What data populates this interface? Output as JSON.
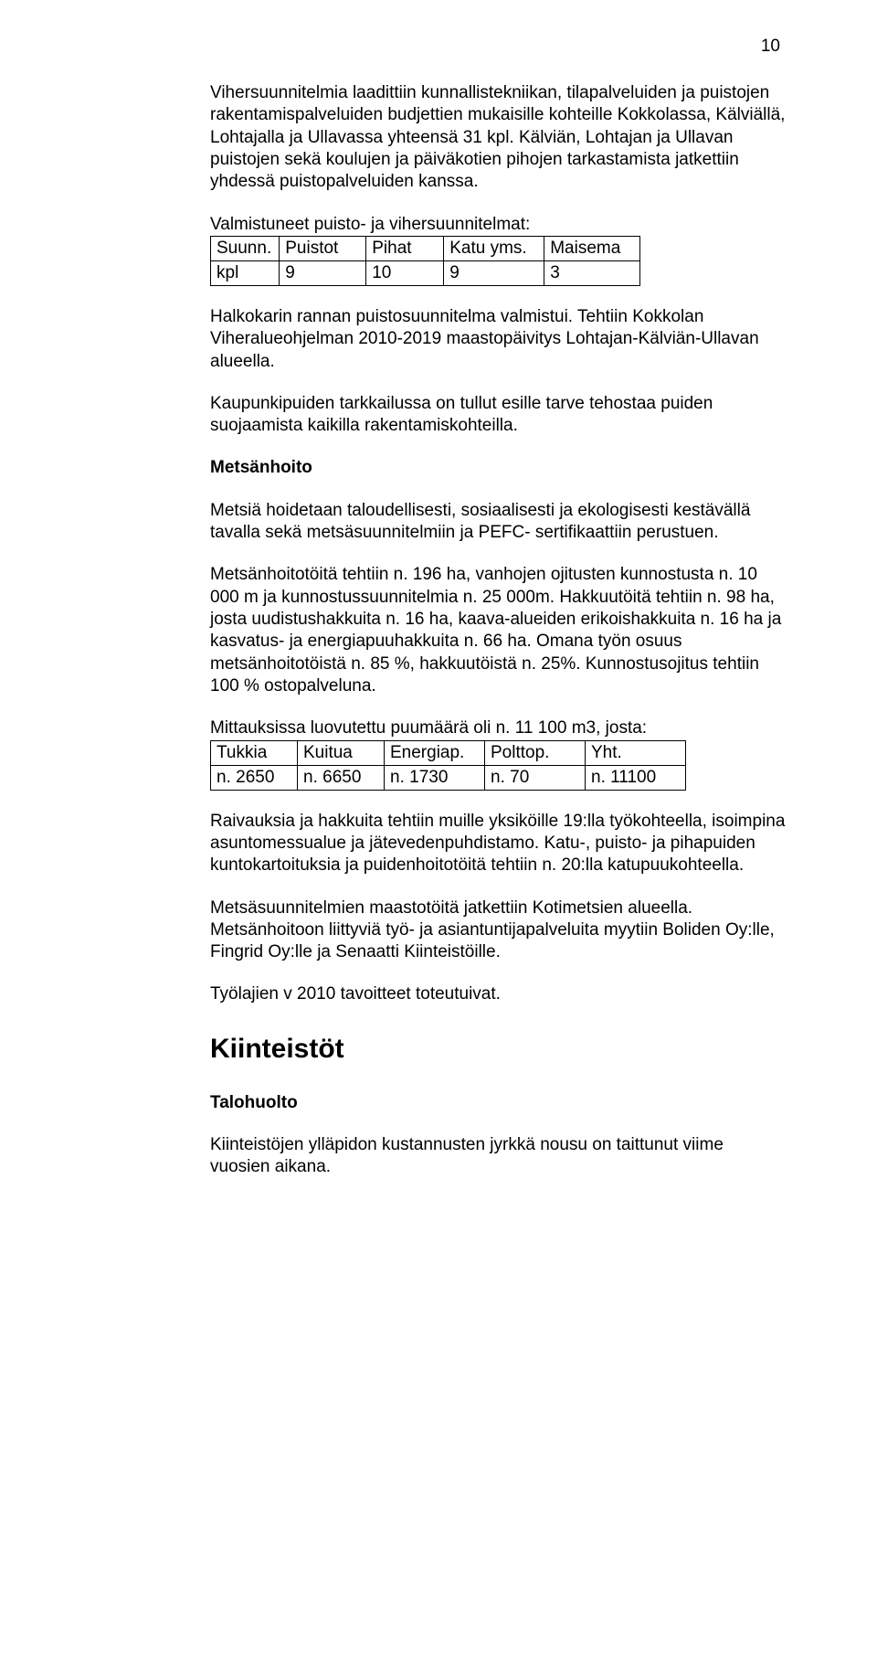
{
  "page_number": "10",
  "para_intro": "Vihersuunnitelmia laadittiin kunnallistekniikan, tilapalveluiden ja puistojen rakentamispalveluiden budjettien mukaisille kohteille Kokkolassa, Kälviällä, Lohtajalla ja Ullavassa yhteensä 31 kpl. Kälviän, Lohtajan ja Ullavan puistojen sekä koulujen ja päiväkotien pihojen tarkastamista jatkettiin yhdessä puistopalveluiden kanssa.",
  "plans_lead": "Valmistuneet puisto- ja vihersuunnitelmat:",
  "plans_table": {
    "headers": [
      "Suunn.",
      "Puistot",
      "Pihat",
      "Katu yms.",
      "Maisema"
    ],
    "row_label": "kpl",
    "row": [
      "9",
      "10",
      "9",
      "3"
    ]
  },
  "para_halkokari": "Halkokarin rannan puistosuunnitelma valmistui.\nTehtiin Kokkolan Viheralueohjelman 2010-2019 maastopäivitys Lohtajan-Kälviän-Ullavan alueella.",
  "para_kaupunkipuut": "Kaupunkipuiden tarkkailussa on tullut esille tarve tehostaa puiden suojaamista kaikilla rakentamiskohteilla.",
  "heading_metsanhoito": "Metsänhoito",
  "para_metsia": "Metsiä hoidetaan taloudellisesti, sosiaalisesti ja ekologisesti kestävällä tavalla sekä metsäsuunnitelmiin ja PEFC- sertifikaattiin perustuen.",
  "para_metsanhoitotoita": "Metsänhoitotöitä tehtiin n. 196 ha, vanhojen ojitusten kunnostusta n. 10 000 m ja kunnostussuunnitelmia n. 25 000m. Hakkuutöitä tehtiin n. 98 ha, josta uudistushakkuita n. 16 ha, kaava-alueiden erikoishakkuita n. 16 ha ja kasvatus- ja energiapuuhakkuita n. 66 ha.\nOmana työn osuus metsänhoitotöistä n. 85 %, hakkuutöistä n. 25%. Kunnostusojitus tehtiin 100 % ostopalveluna.",
  "timber_lead": "Mittauksissa luovutettu puumäärä oli n. 11 100 m3, josta:",
  "timber_table": {
    "headers": [
      "Tukkia",
      "Kuitua",
      "Energiap.",
      "Polttop.",
      "Yht."
    ],
    "row": [
      "n. 2650",
      "n. 6650",
      "n. 1730",
      "n. 70",
      "n. 11100"
    ]
  },
  "para_raivauksia": "Raivauksia ja hakkuita tehtiin muille yksiköille 19:lla työkohteella, isoimpina asuntomessualue ja jätevedenpuhdistamo.\nKatu-, puisto- ja pihapuiden kuntokartoituksia ja puidenhoitotöitä tehtiin n. 20:lla katupuukohteella.",
  "para_metsasuunnitelmien": "Metsäsuunnitelmien maastotöitä jatkettiin Kotimetsien alueella. Metsänhoitoon liittyviä työ- ja asiantuntijapalveluita myytiin Boliden Oy:lle, Fingrid Oy:lle ja Senaatti Kiinteistöille.",
  "para_tyolajien": "Työlajien v 2010 tavoitteet toteutuivat.",
  "heading_kiinteistot": "Kiinteistöt",
  "heading_talohuolto": "Talohuolto",
  "para_kiinteistojen": "Kiinteistöjen ylläpidon kustannusten jyrkkä nousu on taittunut viime vuosien aikana."
}
